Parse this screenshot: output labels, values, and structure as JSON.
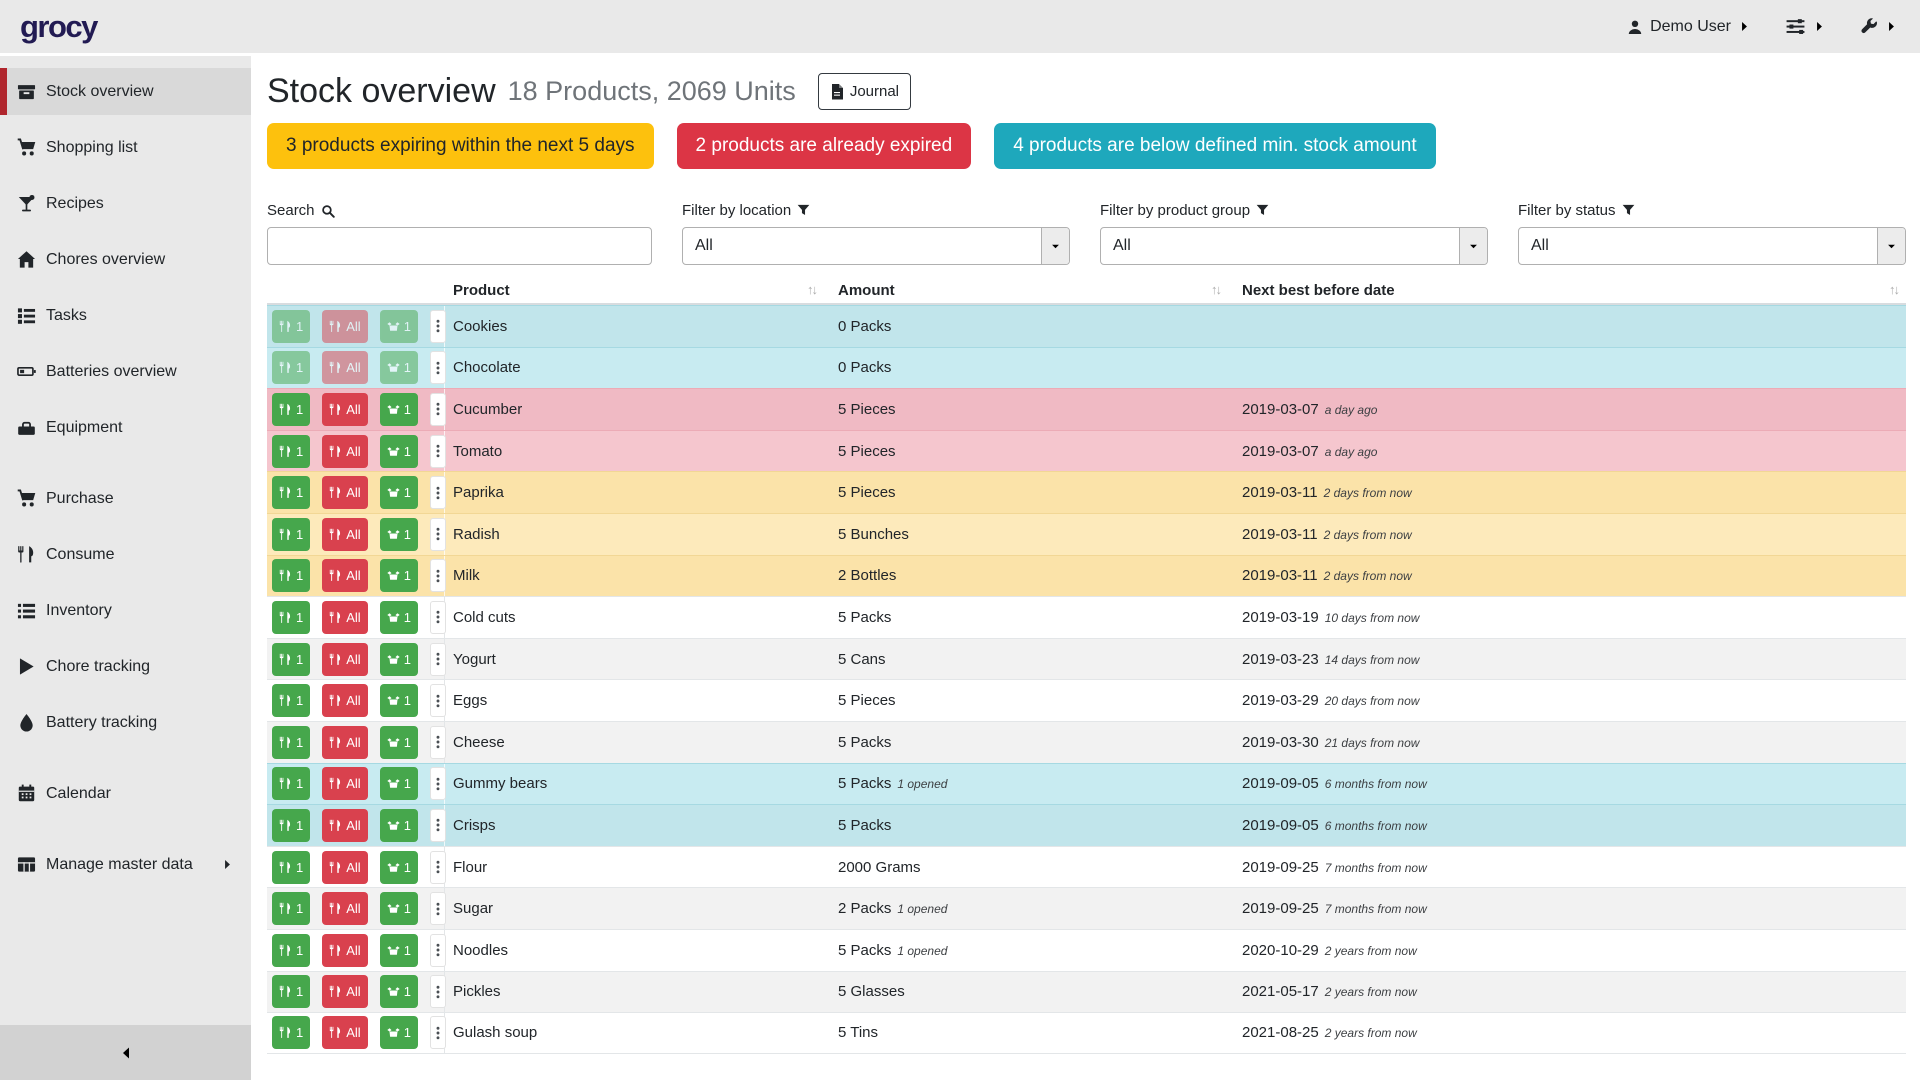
{
  "app": {
    "logo": "grocy"
  },
  "topbar": {
    "user_label": "Demo User"
  },
  "sidebar": {
    "items": [
      {
        "label": "Stock overview",
        "icon": "boxes",
        "selected": true,
        "gap_before": false,
        "trailing_chevron": false
      },
      {
        "label": "Shopping list",
        "icon": "cart",
        "selected": false,
        "gap_before": false,
        "trailing_chevron": false
      },
      {
        "label": "Recipes",
        "icon": "cocktail",
        "selected": false,
        "gap_before": false,
        "trailing_chevron": false
      },
      {
        "label": "Chores overview",
        "icon": "home",
        "selected": false,
        "gap_before": false,
        "trailing_chevron": false
      },
      {
        "label": "Tasks",
        "icon": "tasks",
        "selected": false,
        "gap_before": false,
        "trailing_chevron": false
      },
      {
        "label": "Batteries overview",
        "icon": "battery",
        "selected": false,
        "gap_before": false,
        "trailing_chevron": false
      },
      {
        "label": "Equipment",
        "icon": "toolbox",
        "selected": false,
        "gap_before": false,
        "trailing_chevron": false
      },
      {
        "label": "Purchase",
        "icon": "cart",
        "selected": false,
        "gap_before": true,
        "trailing_chevron": false
      },
      {
        "label": "Consume",
        "icon": "utensils",
        "selected": false,
        "gap_before": false,
        "trailing_chevron": false
      },
      {
        "label": "Inventory",
        "icon": "list",
        "selected": false,
        "gap_before": false,
        "trailing_chevron": false
      },
      {
        "label": "Chore tracking",
        "icon": "play",
        "selected": false,
        "gap_before": false,
        "trailing_chevron": false
      },
      {
        "label": "Battery tracking",
        "icon": "drop",
        "selected": false,
        "gap_before": false,
        "trailing_chevron": false
      },
      {
        "label": "Calendar",
        "icon": "calendar",
        "selected": false,
        "gap_before": true,
        "trailing_chevron": false
      },
      {
        "label": "Manage master data",
        "icon": "grid",
        "selected": false,
        "gap_before": true,
        "trailing_chevron": true
      }
    ]
  },
  "header": {
    "title": "Stock overview",
    "subtitle": "18 Products, 2069 Units",
    "journal_label": "Journal"
  },
  "alerts": [
    {
      "text": "3 products expiring within the next 5 days",
      "status": "warning",
      "color": "#fdc10d"
    },
    {
      "text": "2 products are already expired",
      "status": "danger",
      "color": "#dc3545"
    },
    {
      "text": "4 products are below defined min. stock amount",
      "status": "info",
      "color": "#1ea8bc"
    }
  ],
  "filters": {
    "search_label": "Search",
    "location_label": "Filter by location",
    "product_group_label": "Filter by product group",
    "status_label": "Filter by status",
    "location_value": "All",
    "product_group_value": "All",
    "status_value": "All",
    "search_value": ""
  },
  "table": {
    "columns": [
      "Product",
      "Amount",
      "Next best before date"
    ],
    "sort_icon": "↑↓",
    "row_buttons": {
      "consume_one": "1",
      "consume_all": "All",
      "open_one": "1"
    },
    "rows": [
      {
        "product": "Cookies",
        "amount": "0 Packs",
        "amount_note": "",
        "date": "",
        "date_note": "",
        "status": "info",
        "buttons_disabled": true
      },
      {
        "product": "Chocolate",
        "amount": "0 Packs",
        "amount_note": "",
        "date": "",
        "date_note": "",
        "status": "info",
        "buttons_disabled": true
      },
      {
        "product": "Cucumber",
        "amount": "5 Pieces",
        "amount_note": "",
        "date": "2019-03-07",
        "date_note": "a day ago",
        "status": "danger",
        "buttons_disabled": false
      },
      {
        "product": "Tomato",
        "amount": "5 Pieces",
        "amount_note": "",
        "date": "2019-03-07",
        "date_note": "a day ago",
        "status": "danger",
        "buttons_disabled": false
      },
      {
        "product": "Paprika",
        "amount": "5 Pieces",
        "amount_note": "",
        "date": "2019-03-11",
        "date_note": "2 days from now",
        "status": "warning",
        "buttons_disabled": false
      },
      {
        "product": "Radish",
        "amount": "5 Bunches",
        "amount_note": "",
        "date": "2019-03-11",
        "date_note": "2 days from now",
        "status": "warning",
        "buttons_disabled": false
      },
      {
        "product": "Milk",
        "amount": "2 Bottles",
        "amount_note": "",
        "date": "2019-03-11",
        "date_note": "2 days from now",
        "status": "warning",
        "buttons_disabled": false
      },
      {
        "product": "Cold cuts",
        "amount": "5 Packs",
        "amount_note": "",
        "date": "2019-03-19",
        "date_note": "10 days from now",
        "status": "default",
        "buttons_disabled": false
      },
      {
        "product": "Yogurt",
        "amount": "5 Cans",
        "amount_note": "",
        "date": "2019-03-23",
        "date_note": "14 days from now",
        "status": "default",
        "buttons_disabled": false
      },
      {
        "product": "Eggs",
        "amount": "5 Pieces",
        "amount_note": "",
        "date": "2019-03-29",
        "date_note": "20 days from now",
        "status": "default",
        "buttons_disabled": false
      },
      {
        "product": "Cheese",
        "amount": "5 Packs",
        "amount_note": "",
        "date": "2019-03-30",
        "date_note": "21 days from now",
        "status": "default",
        "buttons_disabled": false
      },
      {
        "product": "Gummy bears",
        "amount": "5 Packs",
        "amount_note": "1 opened",
        "date": "2019-09-05",
        "date_note": "6 months from now",
        "status": "info",
        "buttons_disabled": false
      },
      {
        "product": "Crisps",
        "amount": "5 Packs",
        "amount_note": "",
        "date": "2019-09-05",
        "date_note": "6 months from now",
        "status": "info",
        "buttons_disabled": false
      },
      {
        "product": "Flour",
        "amount": "2000 Grams",
        "amount_note": "",
        "date": "2019-09-25",
        "date_note": "7 months from now",
        "status": "default",
        "buttons_disabled": false
      },
      {
        "product": "Sugar",
        "amount": "2 Packs",
        "amount_note": "1 opened",
        "date": "2019-09-25",
        "date_note": "7 months from now",
        "status": "default",
        "buttons_disabled": false
      },
      {
        "product": "Noodles",
        "amount": "5 Packs",
        "amount_note": "1 opened",
        "date": "2020-10-29",
        "date_note": "2 years from now",
        "status": "default",
        "buttons_disabled": false
      },
      {
        "product": "Pickles",
        "amount": "5 Glasses",
        "amount_note": "",
        "date": "2021-05-17",
        "date_note": "2 years from now",
        "status": "default",
        "buttons_disabled": false
      },
      {
        "product": "Gulash soup",
        "amount": "5 Tins",
        "amount_note": "",
        "date": "2021-08-25",
        "date_note": "2 years from now",
        "status": "default",
        "buttons_disabled": false
      }
    ]
  },
  "icons": {
    "search-icon": "magnifier",
    "filter-icon": "funnel",
    "journal-icon": "file-document",
    "user-icon": "person",
    "sliders-icon": "three-sliders",
    "wrench-icon": "wrench",
    "chevron-right-icon": "›",
    "chevron-left-icon": "‹",
    "chevron-down-icon": "⌄",
    "sort-icon": "↑↓",
    "row-menu-icon": "⋮ vertical dots",
    "consume-icon": "fork-and-knife",
    "open-product-icon": "open-box"
  },
  "status_colors": {
    "info_row": "#c8ebf1",
    "danger_row": "#f5c6ce",
    "warning_row": "#fdeabb",
    "button_green": "#46a74c",
    "button_red": "#d9414e",
    "sidebar_accent": "#b0262d"
  }
}
